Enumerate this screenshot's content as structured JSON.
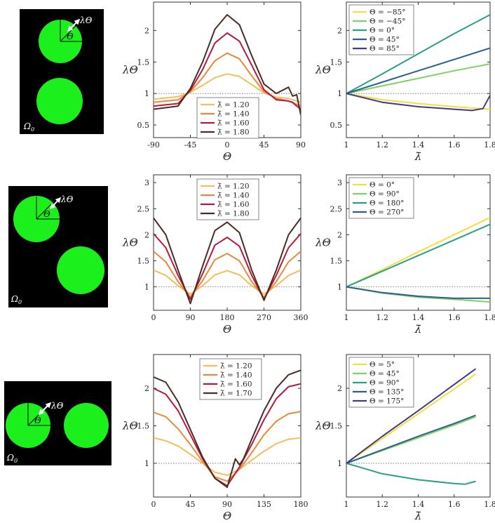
{
  "figure": {
    "cell_label": "Ω",
    "cell_label_sub": "0",
    "arrow_label": "λΘ",
    "angle_label": "Θ",
    "ylabel": "λΘ",
    "xlabel_theta": "Θ",
    "xlabel_stretch": "λ̄"
  },
  "colors": {
    "cell_bg": "#000000",
    "disk": "#1cf01c",
    "ref_line": "#666666"
  },
  "chart_data": [
    {
      "id": "r1-theta",
      "type": "line",
      "row": 1,
      "col": 2,
      "xlabel": "Θ",
      "ylabel": "λΘ",
      "xlim": [
        -90,
        90
      ],
      "ylim": [
        0.3,
        2.45
      ],
      "xticks": [
        -90,
        -45,
        0,
        45,
        90
      ],
      "xtick_labels": [
        "-90",
        "-45",
        "0",
        "45",
        "90"
      ],
      "yticks": [
        0.5,
        1,
        1.5,
        2
      ],
      "ytick_labels": [
        "0.5",
        "1",
        "1.5",
        "2"
      ],
      "reference_y": 1,
      "legend": "bottom-center",
      "series": [
        {
          "name": "λ̄ = 1.20",
          "color": "#f0bf5e",
          "x": [
            -90,
            -60,
            -45,
            -30,
            -15,
            0,
            15,
            30,
            45,
            60,
            75,
            90
          ],
          "y": [
            0.91,
            0.95,
            1.02,
            1.13,
            1.25,
            1.31,
            1.27,
            1.14,
            1.01,
            0.94,
            0.92,
            0.86
          ]
        },
        {
          "name": "λ̄ = 1.40",
          "color": "#e8893b",
          "x": [
            -90,
            -60,
            -45,
            -30,
            -15,
            0,
            15,
            30,
            45,
            60,
            75,
            90
          ],
          "y": [
            0.86,
            0.9,
            1.03,
            1.25,
            1.52,
            1.64,
            1.55,
            1.28,
            1.03,
            0.92,
            0.88,
            0.8
          ]
        },
        {
          "name": "λ̄ = 1.60",
          "color": "#b8183e",
          "x": [
            -90,
            -60,
            -45,
            -30,
            -15,
            0,
            15,
            30,
            45,
            60,
            75,
            80,
            85,
            90
          ],
          "y": [
            0.8,
            0.84,
            1.05,
            1.38,
            1.8,
            1.96,
            1.83,
            1.45,
            1.06,
            0.9,
            0.88,
            0.86,
            0.8,
            0.75
          ]
        },
        {
          "name": "λ̄ = 1.80",
          "color": "#4a2c22",
          "x": [
            -90,
            -60,
            -45,
            -30,
            -15,
            0,
            15,
            30,
            45,
            60,
            75,
            80,
            85,
            90
          ],
          "y": [
            0.75,
            0.8,
            1.08,
            1.5,
            2.02,
            2.25,
            2.09,
            1.6,
            1.15,
            1.0,
            1.1,
            0.96,
            0.98,
            0.66
          ]
        }
      ]
    },
    {
      "id": "r1-stretch",
      "type": "line",
      "row": 1,
      "col": 3,
      "xlabel": "λ̄",
      "ylabel": "λΘ",
      "xlim": [
        1,
        1.8
      ],
      "ylim": [
        0.3,
        2.45
      ],
      "xticks": [
        1,
        1.2,
        1.4,
        1.6,
        1.8
      ],
      "xtick_labels": [
        "1",
        "1.2",
        "1.4",
        "1.6",
        "1.8"
      ],
      "yticks": [
        0.5,
        1,
        1.5,
        2
      ],
      "ytick_labels": [
        "0.5",
        "1",
        "1.5",
        "2"
      ],
      "reference_y": 1,
      "legend": "top-left",
      "series": [
        {
          "name": "Θ = −85°",
          "color": "#f1e03a",
          "x": [
            1.0,
            1.2,
            1.4,
            1.6,
            1.8
          ],
          "y": [
            1.0,
            0.9,
            0.84,
            0.79,
            0.75
          ]
        },
        {
          "name": "Θ = −45°",
          "color": "#7ed265",
          "x": [
            1.0,
            1.2,
            1.4,
            1.6,
            1.8
          ],
          "y": [
            1.0,
            1.12,
            1.24,
            1.36,
            1.47
          ]
        },
        {
          "name": "Θ = 0°",
          "color": "#27a086",
          "x": [
            1.0,
            1.2,
            1.4,
            1.6,
            1.8
          ],
          "y": [
            1.0,
            1.31,
            1.63,
            1.95,
            2.25
          ]
        },
        {
          "name": "Θ = 45°",
          "color": "#2b5f8c",
          "x": [
            1.0,
            1.2,
            1.4,
            1.6,
            1.8
          ],
          "y": [
            1.0,
            1.18,
            1.36,
            1.54,
            1.72
          ]
        },
        {
          "name": "Θ = 85°",
          "color": "#443a83",
          "x": [
            1.0,
            1.2,
            1.4,
            1.6,
            1.7,
            1.76,
            1.8
          ],
          "y": [
            1.0,
            0.86,
            0.79,
            0.75,
            0.73,
            0.76,
            0.97
          ]
        }
      ]
    },
    {
      "id": "r2-theta",
      "type": "line",
      "row": 2,
      "col": 2,
      "xlabel": "Θ",
      "ylabel": "λΘ",
      "xlim": [
        0,
        360
      ],
      "ylim": [
        0.55,
        3.15
      ],
      "xticks": [
        0,
        90,
        180,
        270,
        360
      ],
      "xtick_labels": [
        "0",
        "90",
        "180",
        "270",
        "360"
      ],
      "yticks": [
        1,
        1.5,
        2,
        2.5,
        3
      ],
      "ytick_labels": [
        "1",
        "1.5",
        "2",
        "2.5",
        "3"
      ],
      "reference_y": 1,
      "legend": "top-center",
      "series": [
        {
          "name": "λ̄ = 1.20",
          "color": "#f0bf5e",
          "x": [
            0,
            30,
            60,
            90,
            120,
            150,
            180,
            210,
            240,
            270,
            300,
            330,
            360
          ],
          "y": [
            1.32,
            1.22,
            1.02,
            0.86,
            1.02,
            1.23,
            1.31,
            1.23,
            1.02,
            0.86,
            1.02,
            1.22,
            1.32
          ]
        },
        {
          "name": "λ̄ = 1.40",
          "color": "#e8893b",
          "x": [
            0,
            30,
            60,
            90,
            120,
            150,
            180,
            210,
            240,
            270,
            300,
            330,
            360
          ],
          "y": [
            1.68,
            1.48,
            1.1,
            0.8,
            1.12,
            1.52,
            1.64,
            1.5,
            1.1,
            0.8,
            1.1,
            1.48,
            1.68
          ]
        },
        {
          "name": "λ̄ = 1.60",
          "color": "#b8183e",
          "x": [
            0,
            30,
            60,
            90,
            120,
            150,
            180,
            210,
            240,
            270,
            300,
            330,
            360
          ],
          "y": [
            2.02,
            1.75,
            1.22,
            0.76,
            1.25,
            1.8,
            1.95,
            1.78,
            1.22,
            0.76,
            1.22,
            1.75,
            2.02
          ]
        },
        {
          "name": "λ̄ = 1.80",
          "color": "#4a2c22",
          "x": [
            0,
            30,
            60,
            90,
            120,
            150,
            180,
            210,
            240,
            270,
            300,
            330,
            360
          ],
          "y": [
            2.32,
            2.0,
            1.32,
            0.68,
            1.4,
            2.08,
            2.24,
            2.04,
            1.32,
            0.74,
            1.32,
            2.0,
            2.32
          ]
        }
      ]
    },
    {
      "id": "r2-stretch",
      "type": "line",
      "row": 2,
      "col": 3,
      "xlabel": "λ̄",
      "ylabel": "λΘ",
      "xlim": [
        1,
        1.8
      ],
      "ylim": [
        0.55,
        3.15
      ],
      "xticks": [
        1,
        1.2,
        1.4,
        1.6,
        1.8
      ],
      "xtick_labels": [
        "1",
        "1.2",
        "1.4",
        "1.6",
        "1.8"
      ],
      "yticks": [
        1,
        1.5,
        2,
        2.5,
        3
      ],
      "ytick_labels": [
        "1",
        "1.5",
        "2",
        "2.5",
        "3"
      ],
      "reference_y": 1,
      "legend": "top-left",
      "series": [
        {
          "name": "Θ = 0°",
          "color": "#f1e03a",
          "x": [
            1.0,
            1.2,
            1.4,
            1.6,
            1.8
          ],
          "y": [
            1.0,
            1.33,
            1.67,
            2.0,
            2.33
          ]
        },
        {
          "name": "Θ = 90°",
          "color": "#7ed265",
          "x": [
            1.0,
            1.2,
            1.4,
            1.6,
            1.8
          ],
          "y": [
            1.0,
            0.88,
            0.8,
            0.76,
            0.71
          ]
        },
        {
          "name": "Θ = 180°",
          "color": "#27a086",
          "x": [
            1.0,
            1.2,
            1.4,
            1.6,
            1.8
          ],
          "y": [
            1.0,
            1.3,
            1.6,
            1.9,
            2.2
          ]
        },
        {
          "name": "Θ = 270°",
          "color": "#2b5f8c",
          "x": [
            1.0,
            1.2,
            1.4,
            1.6,
            1.8
          ],
          "y": [
            1.0,
            0.89,
            0.82,
            0.78,
            0.78
          ]
        }
      ]
    },
    {
      "id": "r3-theta",
      "type": "line",
      "row": 3,
      "col": 2,
      "xlabel": "Θ",
      "ylabel": "λΘ",
      "xlim": [
        0,
        180
      ],
      "ylim": [
        0.55,
        2.45
      ],
      "xticks": [
        0,
        45,
        90,
        135,
        180
      ],
      "xtick_labels": [
        "0",
        "45",
        "90",
        "135",
        "180"
      ],
      "yticks": [
        1,
        1.5,
        2
      ],
      "ytick_labels": [
        "1",
        "1.5",
        "2"
      ],
      "reference_y": 1,
      "legend": "top-right",
      "series": [
        {
          "name": "λ̄ = 1.20",
          "color": "#f0bf5e",
          "x": [
            0,
            15,
            30,
            45,
            60,
            75,
            90,
            105,
            120,
            135,
            150,
            165,
            180
          ],
          "y": [
            1.34,
            1.3,
            1.23,
            1.12,
            1.0,
            0.88,
            0.84,
            0.92,
            1.04,
            1.16,
            1.26,
            1.32,
            1.34
          ]
        },
        {
          "name": "λ̄ = 1.40",
          "color": "#e8893b",
          "x": [
            0,
            15,
            30,
            45,
            60,
            75,
            90,
            105,
            120,
            135,
            150,
            165,
            180
          ],
          "y": [
            1.68,
            1.62,
            1.46,
            1.25,
            1.02,
            0.82,
            0.76,
            0.92,
            1.14,
            1.38,
            1.56,
            1.66,
            1.69
          ]
        },
        {
          "name": "λ̄ = 1.60",
          "color": "#b8183e",
          "x": [
            0,
            15,
            30,
            45,
            60,
            75,
            90,
            105,
            120,
            135,
            150,
            165,
            180
          ],
          "y": [
            2.0,
            1.92,
            1.7,
            1.38,
            1.06,
            0.8,
            0.7,
            0.95,
            1.25,
            1.58,
            1.86,
            2.02,
            2.06
          ]
        },
        {
          "name": "λ̄ = 1.70",
          "color": "#4a2c22",
          "x": [
            0,
            15,
            30,
            45,
            60,
            75,
            90,
            100,
            105,
            110,
            120,
            135,
            150,
            165,
            180
          ],
          "y": [
            2.15,
            2.08,
            1.82,
            1.45,
            1.08,
            0.8,
            0.68,
            1.06,
            0.98,
            1.06,
            1.32,
            1.7,
            2.0,
            2.18,
            2.24
          ]
        }
      ]
    },
    {
      "id": "r3-stretch",
      "type": "line",
      "row": 3,
      "col": 3,
      "xlabel": "λ̄",
      "ylabel": "λΘ",
      "xlim": [
        1,
        1.8
      ],
      "ylim": [
        0.55,
        2.45
      ],
      "xticks": [
        1,
        1.2,
        1.4,
        1.6,
        1.8
      ],
      "xtick_labels": [
        "1",
        "1.2",
        "1.4",
        "1.6",
        "1.8"
      ],
      "yticks": [
        1,
        1.5,
        2
      ],
      "ytick_labels": [
        "1",
        "1.5",
        "2"
      ],
      "reference_y": 1,
      "legend": "top-left",
      "series": [
        {
          "name": "Θ = 5°",
          "color": "#f1e03a",
          "x": [
            1.0,
            1.2,
            1.4,
            1.6,
            1.72
          ],
          "y": [
            1.0,
            1.33,
            1.66,
            1.99,
            2.19
          ]
        },
        {
          "name": "Θ = 45°",
          "color": "#7ed265",
          "x": [
            1.0,
            1.2,
            1.4,
            1.6,
            1.72
          ],
          "y": [
            1.0,
            1.17,
            1.34,
            1.51,
            1.62
          ]
        },
        {
          "name": "Θ = 90°",
          "color": "#27a086",
          "x": [
            1.0,
            1.2,
            1.4,
            1.6,
            1.66,
            1.72
          ],
          "y": [
            1.0,
            0.86,
            0.78,
            0.73,
            0.72,
            0.76
          ]
        },
        {
          "name": "Θ = 135°",
          "color": "#2b5f8c",
          "x": [
            1.0,
            1.2,
            1.4,
            1.6,
            1.72
          ],
          "y": [
            1.0,
            1.18,
            1.36,
            1.53,
            1.64
          ]
        },
        {
          "name": "Θ = 175°",
          "color": "#443a83",
          "x": [
            1.0,
            1.2,
            1.4,
            1.6,
            1.72
          ],
          "y": [
            1.0,
            1.36,
            1.7,
            2.05,
            2.26
          ]
        }
      ]
    }
  ]
}
